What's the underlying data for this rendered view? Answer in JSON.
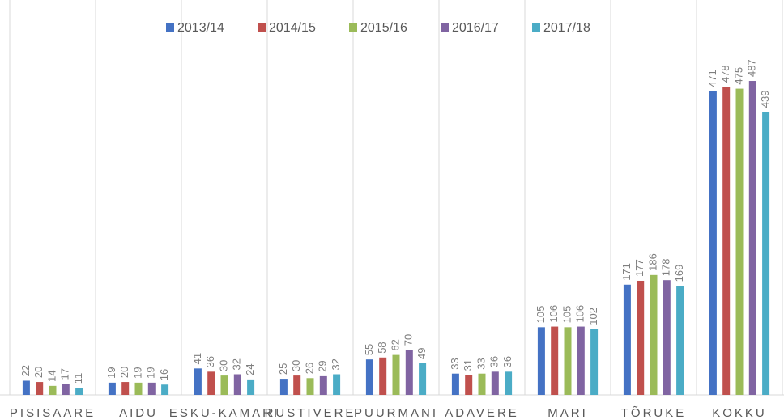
{
  "chart_data": {
    "type": "bar",
    "categories": [
      "PISISAARE",
      "AIDU",
      "ESKU-KAMARI",
      "RUSTIVERE",
      "PUURMANI",
      "ADAVERE",
      "MARI",
      "TÕRUKE",
      "KOKKU"
    ],
    "series": [
      {
        "name": "2013/14",
        "color": "#4472c4",
        "values": [
          22,
          19,
          41,
          25,
          55,
          33,
          105,
          171,
          471
        ]
      },
      {
        "name": "2014/15",
        "color": "#c0504d",
        "values": [
          20,
          20,
          36,
          30,
          58,
          31,
          106,
          177,
          478
        ]
      },
      {
        "name": "2015/16",
        "color": "#9bbb59",
        "values": [
          14,
          19,
          30,
          26,
          62,
          33,
          105,
          186,
          475
        ]
      },
      {
        "name": "2016/17",
        "color": "#8064a2",
        "values": [
          17,
          19,
          32,
          29,
          70,
          36,
          106,
          178,
          487
        ]
      },
      {
        "name": "2017/18",
        "color": "#4bacc6",
        "values": [
          11,
          16,
          24,
          32,
          49,
          36,
          102,
          169,
          439
        ]
      }
    ],
    "ylim": [
      0,
      600
    ],
    "legend": "top"
  }
}
